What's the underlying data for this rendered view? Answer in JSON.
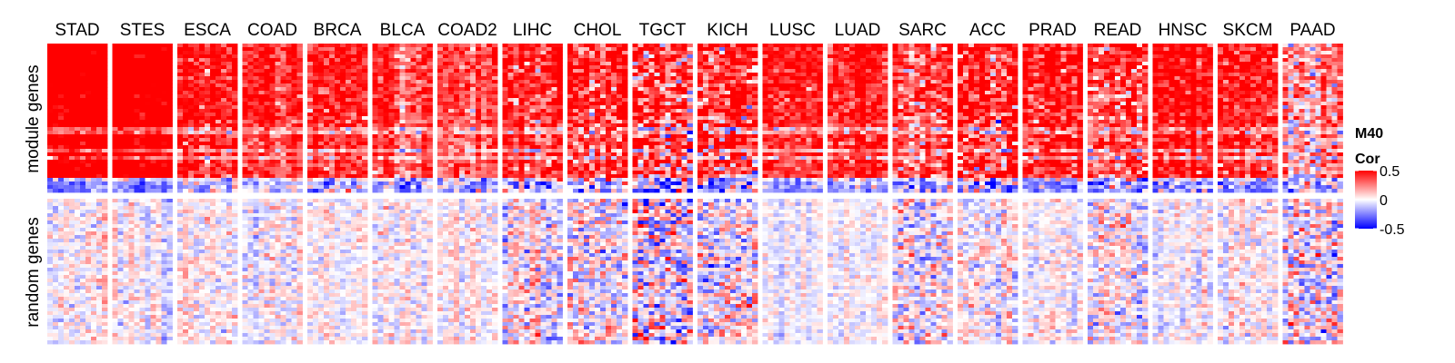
{
  "chart_data": {
    "type": "heatmap",
    "columns": [
      "STAD",
      "STES",
      "ESCA",
      "COAD",
      "BRCA",
      "BLCA",
      "COAD2",
      "LIHC",
      "CHOL",
      "TGCT",
      "KICH",
      "LUSC",
      "LUAD",
      "SARC",
      "ACC",
      "PRAD",
      "READ",
      "HNSC",
      "SKCM",
      "PAAD"
    ],
    "row_groups": [
      "module genes",
      "random genes"
    ],
    "legend": {
      "title_line1": "M40",
      "title_line2": "Cor",
      "ticks": [
        "0.5",
        "0",
        "-0.5"
      ],
      "tick_values": [
        0.5,
        0,
        -0.5
      ],
      "colors": {
        "high": "#ff0000",
        "mid": "#ffffff",
        "low": "#0000ff"
      },
      "range": [
        -0.5,
        0.5
      ]
    },
    "module_mean_cor": [
      0.55,
      0.55,
      0.35,
      0.3,
      0.35,
      0.3,
      0.28,
      0.32,
      0.35,
      0.3,
      0.33,
      0.38,
      0.35,
      0.28,
      0.35,
      0.38,
      0.3,
      0.4,
      0.38,
      0.15
    ],
    "module_noise": [
      0.1,
      0.1,
      0.14,
      0.12,
      0.14,
      0.12,
      0.12,
      0.16,
      0.2,
      0.28,
      0.24,
      0.12,
      0.12,
      0.18,
      0.22,
      0.16,
      0.18,
      0.14,
      0.14,
      0.18
    ],
    "random_noise": [
      0.07,
      0.07,
      0.07,
      0.08,
      0.06,
      0.07,
      0.06,
      0.14,
      0.14,
      0.24,
      0.16,
      0.05,
      0.05,
      0.14,
      0.1,
      0.07,
      0.12,
      0.07,
      0.07,
      0.18
    ]
  }
}
